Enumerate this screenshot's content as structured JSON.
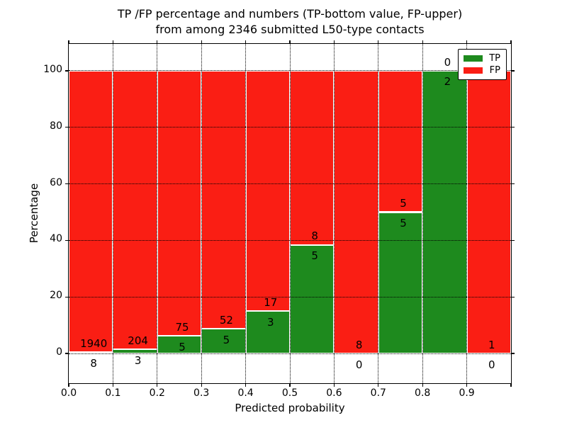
{
  "figure": {
    "title_line1": "TP /FP percentage and numbers (TP-bottom value, FP-upper)",
    "title_line2": "from among 2346 submitted L50-type contacts"
  },
  "chart_data": {
    "type": "bar",
    "stacked": true,
    "normalized": "percent",
    "title": "TP /FP percentage and numbers (TP-bottom value, FP-upper) from among 2346 submitted L50-type contacts",
    "xlabel": "Predicted probability",
    "ylabel": "Percentage",
    "categories": [
      "0.0-0.1",
      "0.1-0.2",
      "0.2-0.3",
      "0.3-0.4",
      "0.4-0.5",
      "0.5-0.6",
      "0.6-0.7",
      "0.7-0.8",
      "0.8-0.9",
      "0.9-1.0"
    ],
    "x_tick_labels": [
      "0.0",
      "0.1",
      "0.2",
      "0.3",
      "0.4",
      "0.5",
      "0.6",
      "0.7",
      "0.8",
      "0.9"
    ],
    "y_ticks": [
      0,
      20,
      40,
      60,
      80,
      100
    ],
    "ylim": [
      -10.5,
      109.5
    ],
    "xlim": [
      0.0,
      1.0
    ],
    "grid": true,
    "series": [
      {
        "name": "TP",
        "color": "#1e8a1e",
        "values": [
          8,
          3,
          5,
          5,
          3,
          5,
          0,
          5,
          2,
          0
        ]
      },
      {
        "name": "FP",
        "color": "#fa1e14",
        "values": [
          1940,
          204,
          75,
          52,
          17,
          8,
          8,
          5,
          0,
          1
        ]
      }
    ],
    "tp_percent": [
      0.41,
      1.45,
      6.25,
      8.77,
      15.0,
      38.46,
      0.0,
      50.0,
      100.0,
      0.0
    ],
    "legend": {
      "position": "upper right",
      "entries": [
        {
          "label": "TP",
          "color": "#1e8a1e"
        },
        {
          "label": "FP",
          "color": "#fa1e14"
        }
      ]
    }
  }
}
